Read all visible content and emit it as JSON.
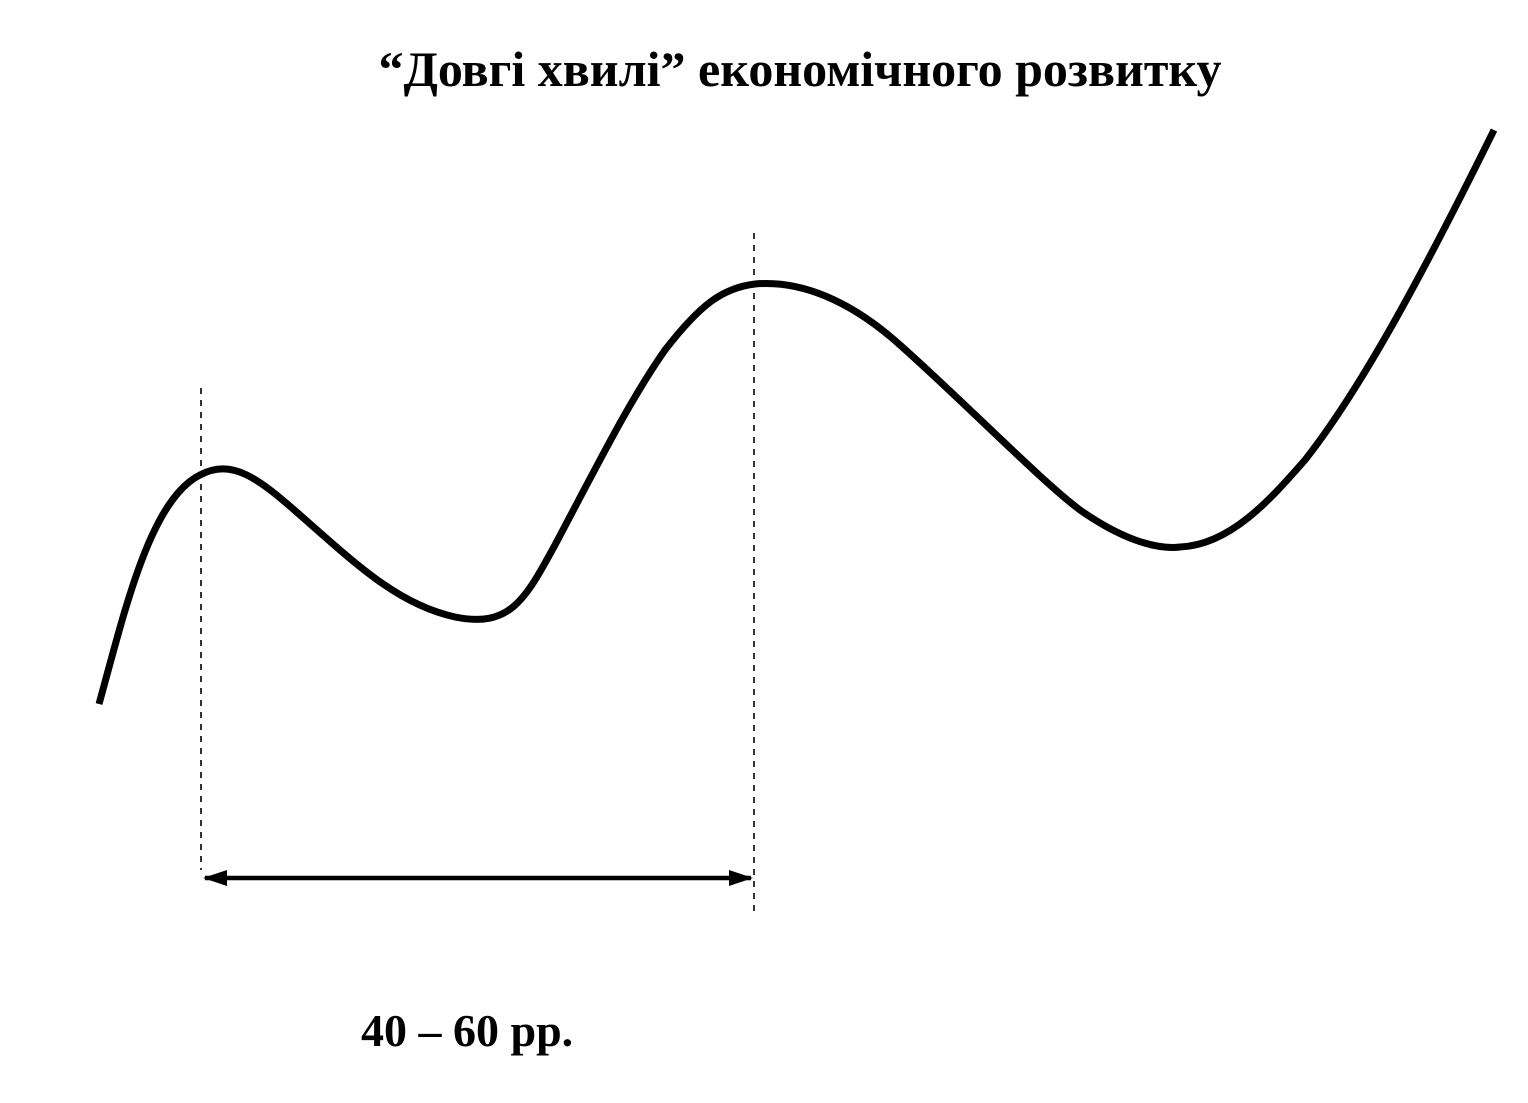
{
  "title": "“Довгі  хвилі” економічного розвитку",
  "period_label": "40 – 60 рр.",
  "colors": {
    "line": "#000000",
    "background": "#ffffff"
  }
}
